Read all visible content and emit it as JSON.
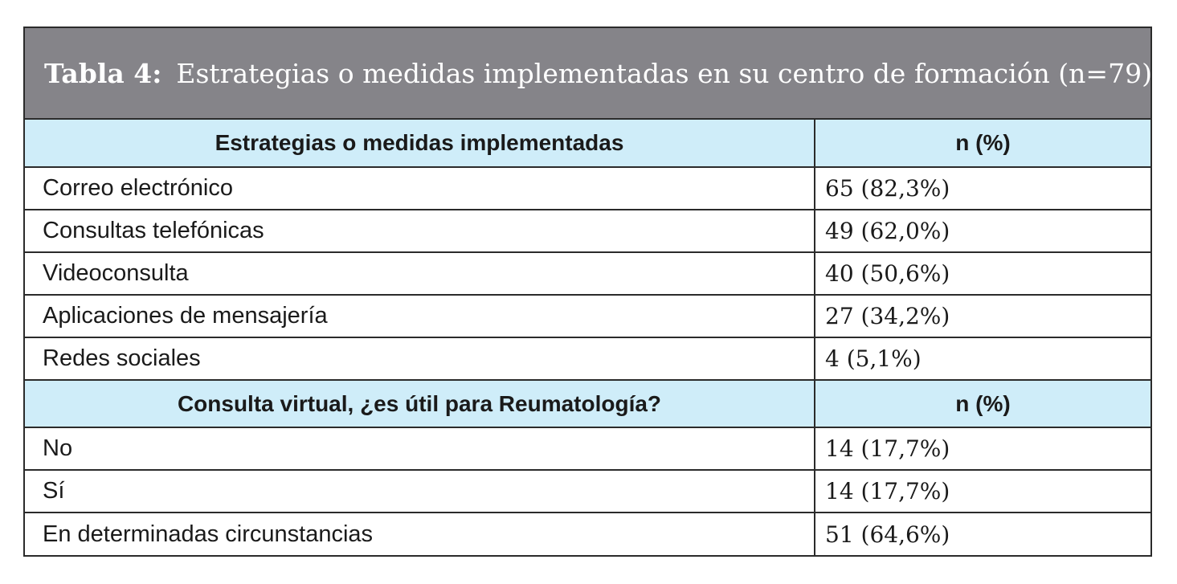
{
  "caption": {
    "label": "Tabla 4:",
    "text": "Estrategias o medidas implementadas en su centro de formación (n=79)."
  },
  "section1": {
    "header": "Estrategias o medidas implementadas",
    "value_header": "n (%)",
    "rows": [
      {
        "label": "Correo electrónico",
        "value": "65 (82,3%)"
      },
      {
        "label": "Consultas telefónicas",
        "value": "49 (62,0%)"
      },
      {
        "label": "Videoconsulta",
        "value": "40 (50,6%)"
      },
      {
        "label": "Aplicaciones de mensajería",
        "value": "27 (34,2%)"
      },
      {
        "label": "Redes sociales",
        "value": "4 (5,1%)"
      }
    ]
  },
  "section2": {
    "header": "Consulta virtual, ¿es útil para Reumatología?",
    "value_header": "n (%)",
    "rows": [
      {
        "label": "No",
        "value": "14 (17,7%)"
      },
      {
        "label": "Sí",
        "value": "14 (17,7%)"
      },
      {
        "label": "En determinadas circunstancias",
        "value": "51 (64,6%)"
      }
    ]
  },
  "colors": {
    "caption_bg": "#858489",
    "header_bg": "#cfedf9",
    "border": "#2b2b2b"
  }
}
